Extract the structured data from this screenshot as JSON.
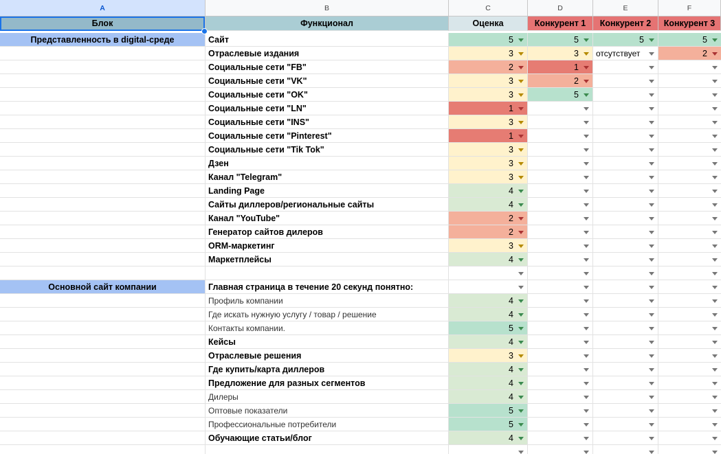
{
  "columns": [
    "A",
    "B",
    "C",
    "D",
    "E",
    "F"
  ],
  "header": [
    "Блок",
    "Функционал",
    "Оценка",
    "Конкурент 1",
    "Конкурент 2",
    "Конкурент 3"
  ],
  "colors": {
    "c5": "#b7e1cd",
    "c4": "#d9ead3",
    "c3": "#fff2cc",
    "c2": "#f4b09b",
    "c1": "#e67c73"
  },
  "rows": [
    {
      "a": "Представленность в digital-среде",
      "b": "Сайт",
      "bold": true,
      "vals": [
        "5",
        "5",
        "5",
        "5"
      ]
    },
    {
      "a": "",
      "b": "Отраслевые издания",
      "bold": true,
      "vals": [
        "3",
        "3",
        "отсутствует",
        "2"
      ]
    },
    {
      "a": "",
      "b": "Социальные сети \"FB\"",
      "bold": true,
      "vals": [
        "2",
        "1",
        "",
        ""
      ]
    },
    {
      "a": "",
      "b": "Социальные сети \"VK\"",
      "bold": true,
      "vals": [
        "3",
        "2",
        "",
        ""
      ]
    },
    {
      "a": "",
      "b": "Социальные сети \"OK\"",
      "bold": true,
      "vals": [
        "3",
        "5",
        "",
        ""
      ]
    },
    {
      "a": "",
      "b": "Социальные сети \"LN\"",
      "bold": true,
      "vals": [
        "1",
        "",
        "",
        ""
      ]
    },
    {
      "a": "",
      "b": "Социальные сети \"INS\"",
      "bold": true,
      "vals": [
        "3",
        "",
        "",
        ""
      ]
    },
    {
      "a": "",
      "b": "Социальные сети \"Pinterest\"",
      "bold": true,
      "vals": [
        "1",
        "",
        "",
        ""
      ]
    },
    {
      "a": "",
      "b": "Социальные сети \"Tik Tok\"",
      "bold": true,
      "vals": [
        "3",
        "",
        "",
        ""
      ]
    },
    {
      "a": "",
      "b": "Дзен",
      "bold": true,
      "vals": [
        "3",
        "",
        "",
        ""
      ]
    },
    {
      "a": "",
      "b": "Канал \"Telegram\"",
      "bold": true,
      "vals": [
        "3",
        "",
        "",
        ""
      ]
    },
    {
      "a": "",
      "b": "Landing Page",
      "bold": true,
      "vals": [
        "4",
        "",
        "",
        ""
      ]
    },
    {
      "a": "",
      "b": "Сайты диллеров/региональные сайты",
      "bold": true,
      "vals": [
        "4",
        "",
        "",
        ""
      ]
    },
    {
      "a": "",
      "b": "Канал \"YouTube\"",
      "bold": true,
      "vals": [
        "2",
        "",
        "",
        ""
      ]
    },
    {
      "a": "",
      "b": "Генератор сайтов дилеров",
      "bold": true,
      "vals": [
        "2",
        "",
        "",
        ""
      ]
    },
    {
      "a": "",
      "b": "ORM-маркетинг",
      "bold": true,
      "vals": [
        "3",
        "",
        "",
        ""
      ]
    },
    {
      "a": "",
      "b": "Маркетплейсы",
      "bold": true,
      "vals": [
        "4",
        "",
        "",
        ""
      ]
    },
    {
      "a": "",
      "b": "",
      "bold": false,
      "blank": true,
      "vals": [
        "",
        "",
        "",
        ""
      ]
    },
    {
      "a": "Основной сайт компании",
      "b": "Главная страница в течение 20 секунд понятно:",
      "bold": true,
      "vals": [
        "",
        "",
        "",
        ""
      ]
    },
    {
      "a": "",
      "b": "Профиль компании",
      "bold": false,
      "vals": [
        "4",
        "",
        "",
        ""
      ]
    },
    {
      "a": "",
      "b": "Где искать нужную услугу / товар / решение",
      "bold": false,
      "vals": [
        "4",
        "",
        "",
        ""
      ]
    },
    {
      "a": "",
      "b": "Контакты компании.",
      "bold": false,
      "vals": [
        "5",
        "",
        "",
        ""
      ]
    },
    {
      "a": "",
      "b": "Кейсы",
      "bold": true,
      "vals": [
        "4",
        "",
        "",
        ""
      ]
    },
    {
      "a": "",
      "b": "Отраслевые решения",
      "bold": true,
      "vals": [
        "3",
        "",
        "",
        ""
      ]
    },
    {
      "a": "",
      "b": "Где купить/карта диллеров",
      "bold": true,
      "vals": [
        "4",
        "",
        "",
        ""
      ]
    },
    {
      "a": "",
      "b": "Предложение для разных сегментов",
      "bold": true,
      "vals": [
        "4",
        "",
        "",
        ""
      ]
    },
    {
      "a": "",
      "b": "Дилеры",
      "bold": false,
      "vals": [
        "4",
        "",
        "",
        ""
      ]
    },
    {
      "a": "",
      "b": "Оптовые показатели",
      "bold": false,
      "vals": [
        "5",
        "",
        "",
        ""
      ]
    },
    {
      "a": "",
      "b": "Профессиональные потребители",
      "bold": false,
      "vals": [
        "5",
        "",
        "",
        ""
      ]
    },
    {
      "a": "",
      "b": "Обучающие статьи/блог",
      "bold": true,
      "vals": [
        "4",
        "",
        "",
        ""
      ]
    },
    {
      "a": "",
      "b": "",
      "bold": false,
      "vals": [
        "",
        "",
        "",
        ""
      ]
    }
  ]
}
